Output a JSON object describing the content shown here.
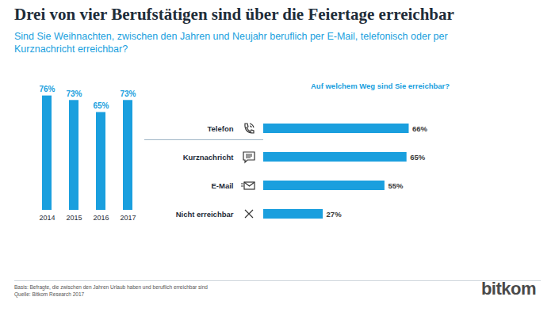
{
  "title": "Drei von vier Berufstätigen sind über die Feiertage erreichbar",
  "subtitle": "Sind Sie Weihnachten, zwischen den Jahren und Neujahr beruflich per E-Mail, telefonisch oder per Kurznachricht erreichbar?",
  "note": "Basis: Befragte, die zwischen den Jahren Urlaub haben und beruflich erreichbar sind",
  "source": "Quelle: Bitkom Research 2017",
  "logo": "bitkom",
  "chart_data": [
    {
      "type": "bar",
      "categories": [
        "2014",
        "2015",
        "2016",
        "2017"
      ],
      "values": [
        76,
        73,
        65,
        73
      ],
      "value_labels": [
        "76%",
        "73%",
        "65%",
        "73%"
      ],
      "data_labels": true,
      "color": "#1a9fde",
      "ylim": [
        0,
        80
      ],
      "tick_labels": "x"
    },
    {
      "type": "bar",
      "orientation": "horizontal",
      "title": "Auf welchem Weg sind Sie erreichbar?",
      "categories": [
        "Telefon",
        "Kurznachricht",
        "E-Mail",
        "Nicht erreichbar"
      ],
      "values": [
        66,
        65,
        55,
        27
      ],
      "value_labels": [
        "66%",
        "65%",
        "55%",
        "27%"
      ],
      "data_labels": true,
      "color": "#1a9fde",
      "xlim": [
        0,
        100
      ],
      "tick_labels": "y"
    }
  ]
}
